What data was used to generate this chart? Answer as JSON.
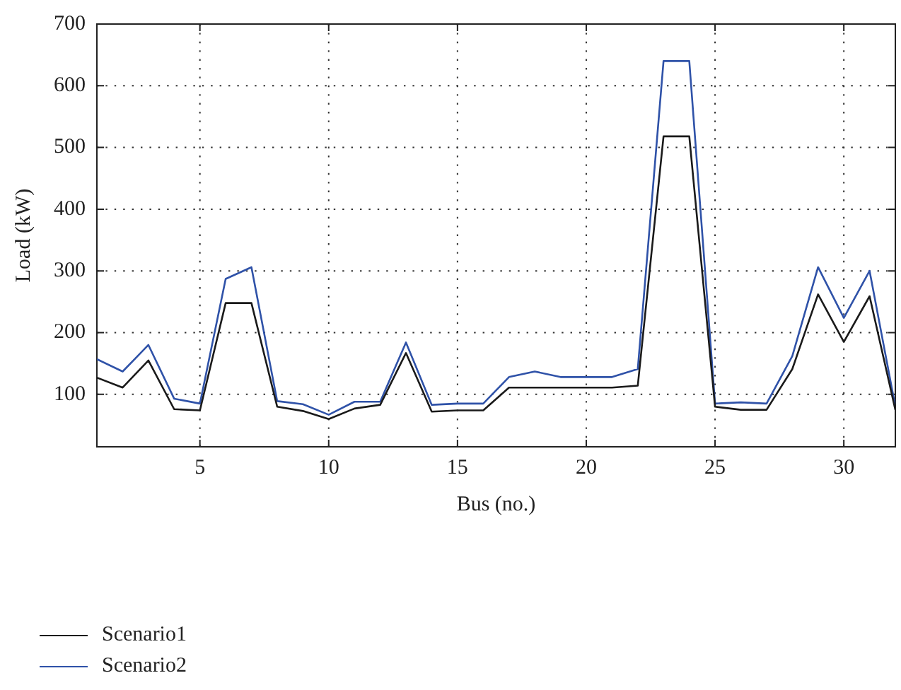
{
  "chart_data": {
    "type": "line",
    "xlabel": "Bus (no.)",
    "ylabel": "Load (kW)",
    "x": [
      1,
      2,
      3,
      4,
      5,
      6,
      7,
      8,
      9,
      10,
      11,
      12,
      13,
      14,
      15,
      16,
      17,
      18,
      19,
      20,
      21,
      22,
      23,
      24,
      25,
      26,
      27,
      28,
      29,
      30,
      31,
      32
    ],
    "series": [
      {
        "name": "Scenario1",
        "color": "#1a1a1a",
        "values": [
          127,
          111,
          155,
          76,
          74,
          248,
          248,
          80,
          73,
          60,
          77,
          83,
          167,
          72,
          74,
          74,
          111,
          111,
          111,
          111,
          111,
          114,
          518,
          518,
          80,
          75,
          75,
          141,
          262,
          185,
          259,
          75
        ]
      },
      {
        "name": "Scenario2",
        "color": "#2f52a8",
        "values": [
          157,
          137,
          180,
          93,
          85,
          287,
          306,
          89,
          84,
          67,
          88,
          88,
          184,
          83,
          85,
          85,
          128,
          137,
          128,
          128,
          128,
          141,
          640,
          640,
          85,
          87,
          85,
          162,
          306,
          224,
          300,
          80
        ]
      }
    ],
    "xlim": [
      1,
      32
    ],
    "xticks": [
      5,
      10,
      15,
      20,
      25,
      30
    ],
    "ylim": [
      15,
      700
    ],
    "yticks": [
      100,
      200,
      300,
      400,
      500,
      600,
      700
    ],
    "grid": true,
    "legend": "bottom left",
    "marker": "none",
    "line_style": "solid"
  }
}
